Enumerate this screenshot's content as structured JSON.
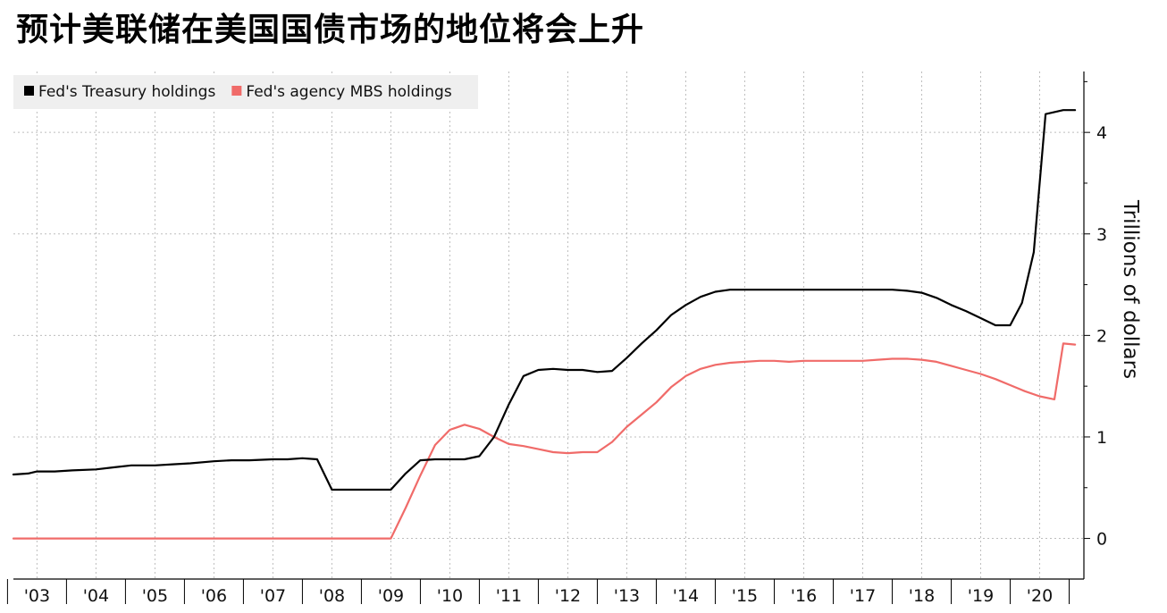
{
  "title": "预计美联储在美国国债市场的地位将会上升",
  "chart_data": {
    "type": "line",
    "title": "预计美联储在美国国债市场的地位将会上升",
    "xlabel": "",
    "ylabel": "Trillions of dollars",
    "ylim": [
      -0.4,
      4.6
    ],
    "yticks": [
      0,
      1,
      2,
      3,
      4
    ],
    "xlim": [
      2002.6,
      2020.75
    ],
    "x_tick_labels": [
      "'03",
      "'04",
      "'05",
      "'06",
      "'07",
      "'08",
      "'09",
      "'10",
      "'11",
      "'12",
      "'13",
      "'14",
      "'15",
      "'16",
      "'17",
      "'18",
      "'19",
      "'20"
    ],
    "x_tick_positions": [
      2003,
      2004,
      2005,
      2006,
      2007,
      2008,
      2009,
      2010,
      2011,
      2012,
      2013,
      2014,
      2015,
      2016,
      2017,
      2018,
      2019,
      2020
    ],
    "grid": true,
    "legend_position": "top-left",
    "series": [
      {
        "name": "Fed's Treasury holdings",
        "color": "#000000",
        "x": [
          2002.6,
          2002.85,
          2003.0,
          2003.3,
          2003.6,
          2004.0,
          2004.3,
          2004.6,
          2005.0,
          2005.3,
          2005.6,
          2006.0,
          2006.3,
          2006.6,
          2007.0,
          2007.25,
          2007.5,
          2007.75,
          2008.0,
          2008.15,
          2008.5,
          2008.75,
          2009.0,
          2009.25,
          2009.5,
          2009.75,
          2010.0,
          2010.25,
          2010.5,
          2010.75,
          2011.0,
          2011.25,
          2011.5,
          2011.75,
          2012.0,
          2012.25,
          2012.5,
          2012.75,
          2013.0,
          2013.25,
          2013.5,
          2013.75,
          2014.0,
          2014.25,
          2014.5,
          2014.75,
          2015.0,
          2015.5,
          2016.0,
          2016.5,
          2017.0,
          2017.5,
          2017.75,
          2018.0,
          2018.25,
          2018.5,
          2018.75,
          2019.0,
          2019.25,
          2019.5,
          2019.7,
          2019.9,
          2020.1,
          2020.25,
          2020.4,
          2020.6
        ],
        "values": [
          0.63,
          0.64,
          0.66,
          0.66,
          0.67,
          0.68,
          0.7,
          0.72,
          0.72,
          0.73,
          0.74,
          0.76,
          0.77,
          0.77,
          0.78,
          0.78,
          0.79,
          0.78,
          0.48,
          0.48,
          0.48,
          0.48,
          0.48,
          0.64,
          0.77,
          0.78,
          0.78,
          0.78,
          0.81,
          1.0,
          1.32,
          1.6,
          1.66,
          1.67,
          1.66,
          1.66,
          1.64,
          1.65,
          1.78,
          1.92,
          2.05,
          2.2,
          2.3,
          2.38,
          2.43,
          2.45,
          2.45,
          2.45,
          2.45,
          2.45,
          2.45,
          2.45,
          2.44,
          2.42,
          2.37,
          2.3,
          2.24,
          2.17,
          2.1,
          2.1,
          2.32,
          2.82,
          4.18,
          4.2,
          4.22,
          4.22
        ]
      },
      {
        "name": "Fed's agency MBS holdings",
        "color": "#f06b69",
        "x": [
          2002.6,
          2003.0,
          2004.0,
          2005.0,
          2006.0,
          2007.0,
          2008.0,
          2009.0,
          2009.25,
          2009.5,
          2009.75,
          2010.0,
          2010.25,
          2010.5,
          2010.75,
          2011.0,
          2011.25,
          2011.5,
          2011.75,
          2012.0,
          2012.25,
          2012.5,
          2012.75,
          2013.0,
          2013.25,
          2013.5,
          2013.75,
          2014.0,
          2014.25,
          2014.5,
          2014.75,
          2015.0,
          2015.25,
          2015.5,
          2015.75,
          2016.0,
          2016.5,
          2017.0,
          2017.25,
          2017.5,
          2017.75,
          2018.0,
          2018.25,
          2018.5,
          2018.75,
          2019.0,
          2019.25,
          2019.5,
          2019.75,
          2020.0,
          2020.25,
          2020.4,
          2020.6
        ],
        "values": [
          0,
          0,
          0,
          0,
          0,
          0,
          0,
          0,
          0.3,
          0.62,
          0.92,
          1.07,
          1.12,
          1.08,
          1.0,
          0.93,
          0.91,
          0.88,
          0.85,
          0.84,
          0.85,
          0.85,
          0.95,
          1.1,
          1.22,
          1.34,
          1.49,
          1.6,
          1.67,
          1.71,
          1.73,
          1.74,
          1.75,
          1.75,
          1.74,
          1.75,
          1.75,
          1.75,
          1.76,
          1.77,
          1.77,
          1.76,
          1.74,
          1.7,
          1.66,
          1.62,
          1.57,
          1.51,
          1.45,
          1.4,
          1.37,
          1.92,
          1.91
        ]
      }
    ]
  }
}
